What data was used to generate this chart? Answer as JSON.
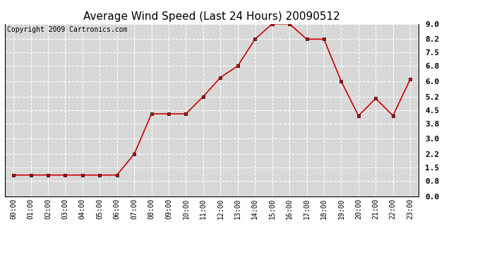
{
  "title": "Average Wind Speed (Last 24 Hours) 20090512",
  "copyright": "Copyright 2009 Cartronics.com",
  "x_labels": [
    "00:00",
    "01:00",
    "02:00",
    "03:00",
    "04:00",
    "05:00",
    "06:00",
    "07:00",
    "08:00",
    "09:00",
    "10:00",
    "11:00",
    "12:00",
    "13:00",
    "14:00",
    "15:00",
    "16:00",
    "17:00",
    "18:00",
    "19:00",
    "20:00",
    "21:00",
    "22:00",
    "23:00"
  ],
  "y_values": [
    1.1,
    1.1,
    1.1,
    1.1,
    1.1,
    1.1,
    1.1,
    2.2,
    4.3,
    4.3,
    4.3,
    5.2,
    6.2,
    6.8,
    8.2,
    9.0,
    9.0,
    8.2,
    8.2,
    6.0,
    4.2,
    5.1,
    4.2,
    6.1
  ],
  "ylim": [
    0.0,
    9.0
  ],
  "yticks": [
    0.0,
    0.8,
    1.5,
    2.2,
    3.0,
    3.8,
    4.5,
    5.2,
    6.0,
    6.8,
    7.5,
    8.2,
    9.0
  ],
  "line_color": "#cc0000",
  "marker_color": "#cc0000",
  "bg_color": "#d8d8d8",
  "grid_color": "#ffffff",
  "title_fontsize": 11,
  "copyright_fontsize": 7,
  "tick_fontsize": 7,
  "ytick_fontsize": 8
}
